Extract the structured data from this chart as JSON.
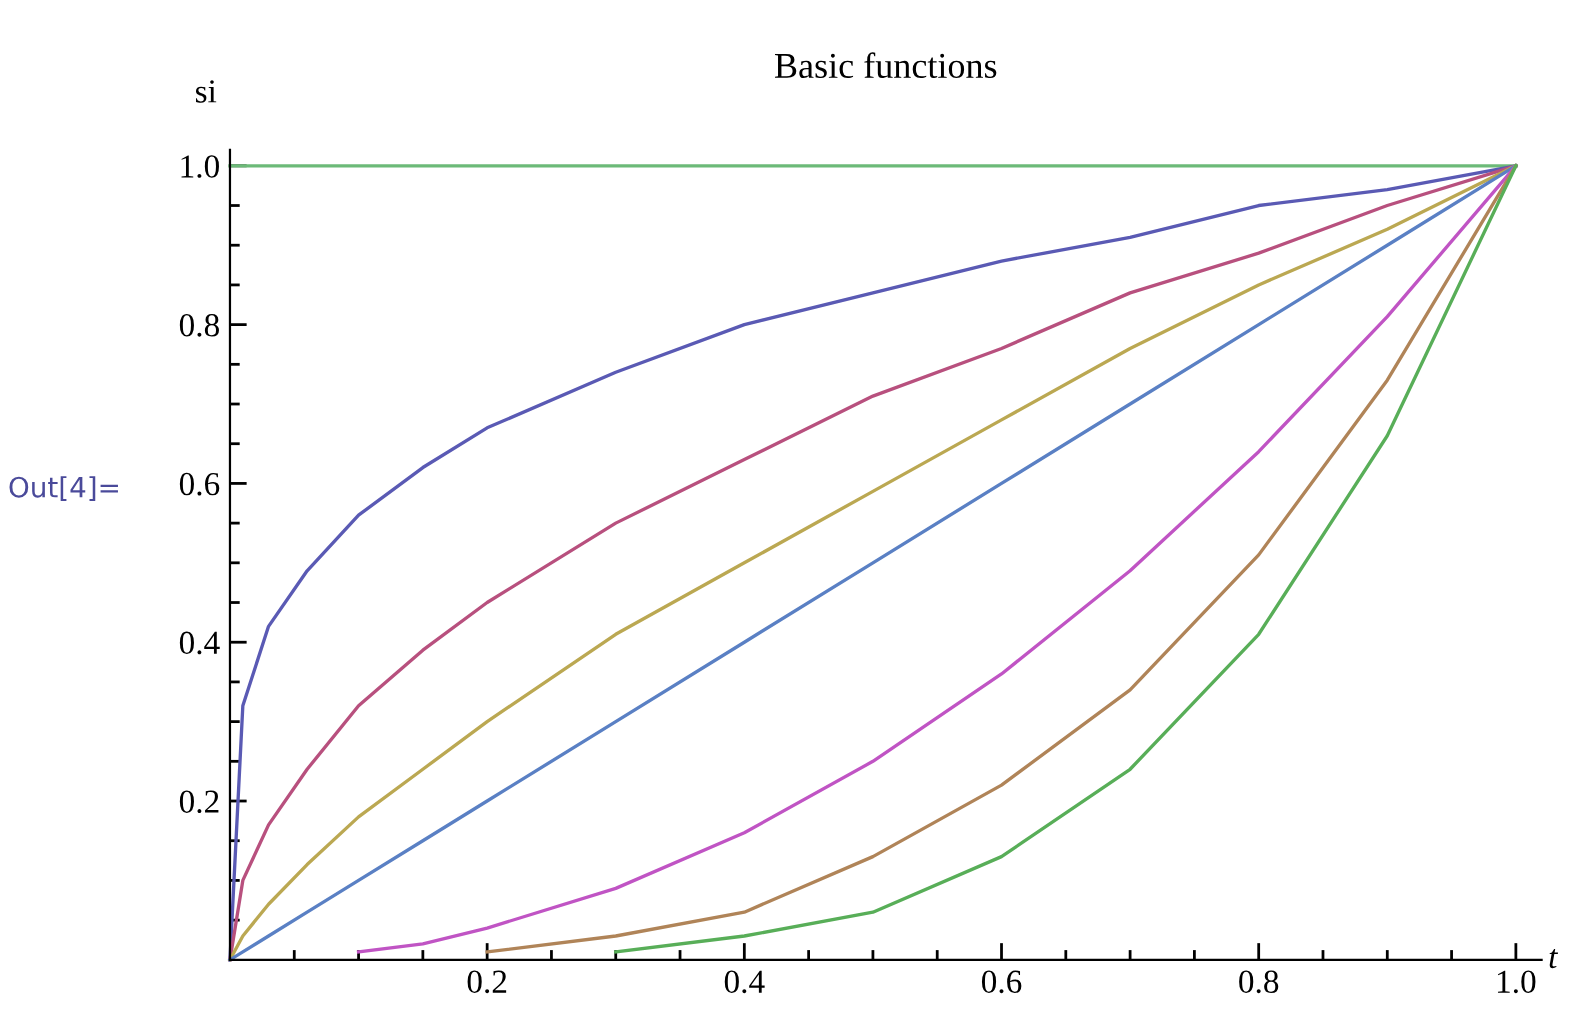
{
  "chart_data": {
    "type": "line",
    "title": "Basic functions",
    "xlabel": "t",
    "ylabel": "si",
    "annotations": [
      "Out[4]="
    ],
    "x": [
      0,
      0.01,
      0.03,
      0.06,
      0.1,
      0.15,
      0.2,
      0.3,
      0.4,
      0.5,
      0.6,
      0.7,
      0.8,
      0.9,
      1.0
    ],
    "series": [
      {
        "color": "#6cba78",
        "values": [
          1,
          1,
          1,
          1,
          1,
          1,
          1,
          1,
          1,
          1,
          1,
          1,
          1,
          1,
          1
        ]
      },
      {
        "color": "#5a5ab4",
        "values": [
          0,
          0.32,
          0.42,
          0.49,
          0.56,
          0.62,
          0.67,
          0.74,
          0.8,
          0.84,
          0.88,
          0.91,
          0.95,
          0.97,
          1
        ]
      },
      {
        "color": "#b8507e",
        "values": [
          0,
          0.1,
          0.17,
          0.24,
          0.32,
          0.39,
          0.45,
          0.55,
          0.63,
          0.71,
          0.77,
          0.84,
          0.89,
          0.95,
          1
        ]
      },
      {
        "color": "#bba852",
        "values": [
          0,
          0.03,
          0.07,
          0.12,
          0.18,
          0.24,
          0.3,
          0.41,
          0.5,
          0.59,
          0.68,
          0.77,
          0.85,
          0.92,
          1
        ]
      },
      {
        "color": "#5a80c4",
        "values": [
          0,
          0.01,
          0.03,
          0.06,
          0.1,
          0.15,
          0.2,
          0.3,
          0.4,
          0.5,
          0.6,
          0.7,
          0.8,
          0.9,
          1
        ]
      },
      {
        "color": "#c054c4",
        "values": [
          null,
          null,
          null,
          null,
          0.01,
          0.02,
          0.04,
          0.09,
          0.16,
          0.25,
          0.36,
          0.49,
          0.64,
          0.81,
          1
        ]
      },
      {
        "color": "#b08458",
        "values": [
          null,
          null,
          null,
          null,
          null,
          null,
          0.01,
          0.03,
          0.06,
          0.13,
          0.22,
          0.34,
          0.51,
          0.73,
          1
        ]
      },
      {
        "color": "#58ae58",
        "values": [
          null,
          null,
          null,
          null,
          null,
          null,
          null,
          0.01,
          0.03,
          0.06,
          0.13,
          0.24,
          0.41,
          0.66,
          1
        ]
      }
    ],
    "xlim": [
      0,
      1.02
    ],
    "ylim": [
      0,
      1.02
    ],
    "xticks": [
      {
        "value": 0.05,
        "label": null
      },
      {
        "value": 0.1,
        "label": null
      },
      {
        "value": 0.15,
        "label": null
      },
      0.2,
      {
        "value": 0.25,
        "label": null
      },
      {
        "value": 0.3,
        "label": null
      },
      {
        "value": 0.35,
        "label": null
      },
      0.4,
      {
        "value": 0.45,
        "label": null
      },
      {
        "value": 0.5,
        "label": null
      },
      {
        "value": 0.55,
        "label": null
      },
      0.6,
      {
        "value": 0.65,
        "label": null
      },
      {
        "value": 0.7,
        "label": null
      },
      {
        "value": 0.75,
        "label": null
      },
      0.8,
      {
        "value": 0.85,
        "label": null
      },
      {
        "value": 0.9,
        "label": null
      },
      {
        "value": 0.95,
        "label": null
      },
      {
        "value": 1,
        "label": "1.0"
      }
    ],
    "yticks": [
      {
        "value": 0.05,
        "label": null
      },
      {
        "value": 0.1,
        "label": null
      },
      {
        "value": 0.15,
        "label": null
      },
      0.2,
      {
        "value": 0.25,
        "label": null
      },
      {
        "value": 0.3,
        "label": null
      },
      {
        "value": 0.35,
        "label": null
      },
      0.4,
      {
        "value": 0.45,
        "label": null
      },
      {
        "value": 0.5,
        "label": null
      },
      {
        "value": 0.55,
        "label": null
      },
      0.6,
      {
        "value": 0.65,
        "label": null
      },
      {
        "value": 0.7,
        "label": null
      },
      {
        "value": 0.75,
        "label": null
      },
      0.8,
      {
        "value": 0.85,
        "label": null
      },
      {
        "value": 0.9,
        "label": null
      },
      {
        "value": 0.95,
        "label": null
      },
      {
        "value": 1,
        "label": "1.0"
      }
    ],
    "grid": false,
    "legend": false,
    "marker": "none",
    "line_style": "solid"
  }
}
